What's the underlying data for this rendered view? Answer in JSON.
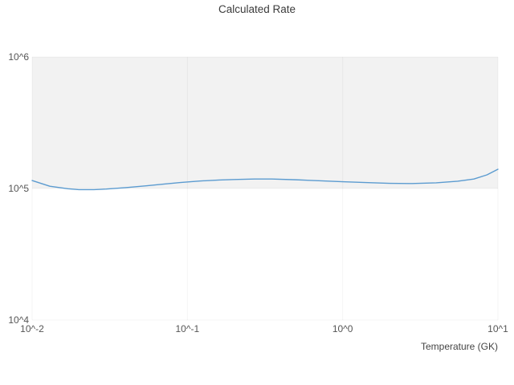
{
  "chart_data": {
    "type": "line",
    "title": "Calculated Rate",
    "xlabel": "Temperature (GK)",
    "ylabel": "",
    "xscale": "log",
    "yscale": "log",
    "xlim": [
      0.01,
      10
    ],
    "ylim": [
      10000,
      1000000
    ],
    "grid": "subtle",
    "legend": "none",
    "x_ticks": [
      {
        "value": 0.01,
        "label": "10^-2"
      },
      {
        "value": 0.1,
        "label": "10^-1"
      },
      {
        "value": 1,
        "label": "10^0"
      },
      {
        "value": 10,
        "label": "10^1"
      }
    ],
    "y_ticks": [
      {
        "value": 10000,
        "label": "10^4"
      },
      {
        "value": 100000,
        "label": "10^5"
      },
      {
        "value": 1000000,
        "label": "10^6"
      }
    ],
    "band": {
      "from": 100000,
      "to": 1000000,
      "color": "#f2f2f2"
    },
    "series": [
      {
        "name": "calculated-rate",
        "color": "#5b9bd0",
        "x": [
          0.01,
          0.013,
          0.017,
          0.02,
          0.025,
          0.03,
          0.04,
          0.055,
          0.07,
          0.09,
          0.12,
          0.16,
          0.2,
          0.27,
          0.35,
          0.5,
          0.7,
          1.0,
          1.4,
          2.0,
          2.8,
          4.0,
          5.5,
          7.0,
          8.5,
          10.0
        ],
        "y": [
          115000,
          104000,
          99500,
          98000,
          98000,
          99000,
          101500,
          105000,
          108000,
          111000,
          114000,
          116000,
          117000,
          118000,
          118000,
          116500,
          114500,
          112500,
          111000,
          109500,
          109000,
          110500,
          113500,
          118000,
          127000,
          140000
        ]
      }
    ]
  }
}
